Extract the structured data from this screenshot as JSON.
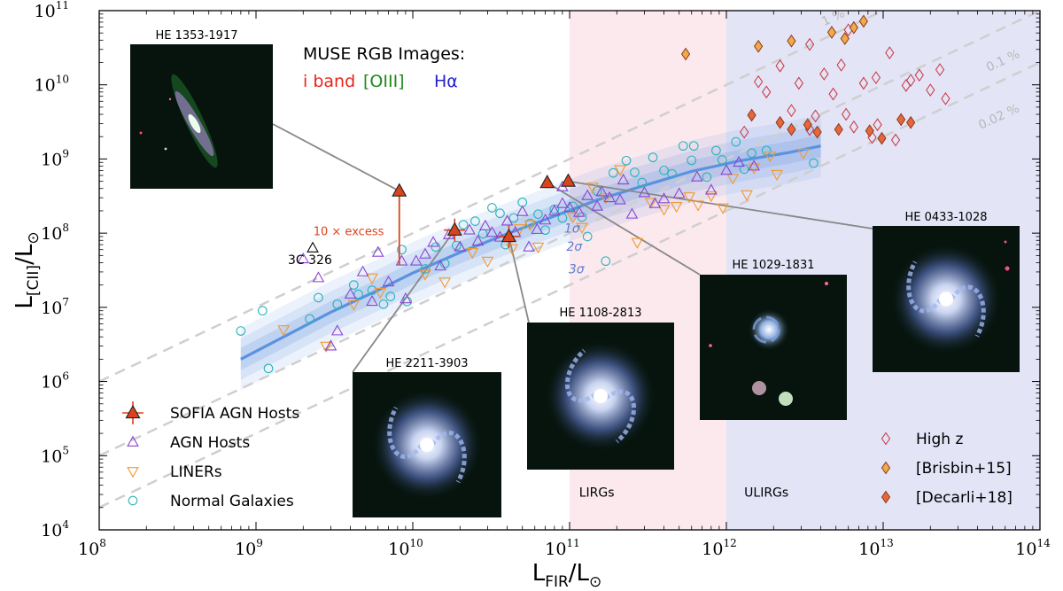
{
  "chart_data": {
    "type": "scatter",
    "xlabel": "L_FIR/L_⊙",
    "ylabel": "L_[CII]/L_⊙",
    "xscale": "log",
    "yscale": "log",
    "xlim": [
      100000000.0,
      100000000000000.0
    ],
    "ylim": [
      10000.0,
      100000000000.0
    ],
    "grid": false,
    "legend_position": "lower-left and lower-right",
    "x_tick_labels": [
      "10^8",
      "10^9",
      "10^10",
      "10^11",
      "10^12",
      "10^13",
      "10^14"
    ],
    "y_tick_labels": [
      "10^4",
      "10^5",
      "10^6",
      "10^7",
      "10^8",
      "10^9",
      "10^10",
      "10^11"
    ],
    "regions": [
      {
        "label": "LIRGs",
        "x_range": [
          100000000000.0,
          1000000000000.0
        ],
        "color": "#fbe9ee"
      },
      {
        "label": "ULIRGs",
        "x_range": [
          1000000000000.0,
          100000000000000.0
        ],
        "color": "#e3e4f6"
      }
    ],
    "ratio_lines": [
      {
        "label": "1 %",
        "ratio": 0.01
      },
      {
        "label": "0.1 %",
        "ratio": 0.001
      },
      {
        "label": "0.02 %",
        "ratio": 0.0002
      }
    ],
    "fit_line": {
      "x": [
        800000000.0,
        1500000000.0,
        3000000000.0,
        6000000000.0,
        10000000000.0,
        20000000000.0,
        40000000000.0,
        80000000000.0,
        150000000000.0,
        300000000000.0,
        600000000000.0,
        1200000000000.0,
        2500000000000.0,
        4000000000000.0
      ],
      "y": [
        2000000.0,
        4000000.0,
        8600000.0,
        17000000.0,
        29000000.0,
        55000000.0,
        98000000.0,
        170000000.0,
        280000000.0,
        440000000.0,
        680000000.0,
        940000000.0,
        1220000000.0,
        1500000000.0
      ]
    },
    "confidence_labels": [
      "1σ",
      "2σ",
      "3σ"
    ],
    "series": [
      {
        "name": "SOFIA AGN Hosts",
        "marker": "triangle-up-filled",
        "color": "#d9441d",
        "points": [
          [
            8200000000.0,
            370000000.0
          ],
          [
            18500000000.0,
            110000000.0
          ],
          [
            41000000000.0,
            90000000.0
          ],
          [
            72000000000.0,
            480000000.0
          ],
          [
            98000000000.0,
            500000000.0
          ]
        ]
      },
      {
        "name": "AGN Hosts",
        "marker": "triangle-up-open",
        "color": "#8b45d1",
        "points": [
          [
            2000000000.0,
            45000000.0
          ],
          [
            2500000000.0,
            25000000.0
          ],
          [
            3000000000.0,
            3000000.0
          ],
          [
            3300000000.0,
            4800000.0
          ],
          [
            4000000000.0,
            15000000.0
          ],
          [
            4800000000.0,
            30000000.0
          ],
          [
            5500000000.0,
            12000000.0
          ],
          [
            6000000000.0,
            55000000.0
          ],
          [
            7000000000.0,
            22000000.0
          ],
          [
            8500000000.0,
            42000000.0
          ],
          [
            9000000000.0,
            13000000.0
          ],
          [
            10500000000.0,
            42000000.0
          ],
          [
            12000000000.0,
            52000000.0
          ],
          [
            13500000000.0,
            75000000.0
          ],
          [
            15000000000.0,
            36000000.0
          ],
          [
            17000000000.0,
            95000000.0
          ],
          [
            20000000000.0,
            65000000.0
          ],
          [
            23000000000.0,
            110000000.0
          ],
          [
            26000000000.0,
            78000000.0
          ],
          [
            29000000000.0,
            125000000.0
          ],
          [
            32000000000.0,
            102000000.0
          ],
          [
            36000000000.0,
            88000000.0
          ],
          [
            40000000000.0,
            145000000.0
          ],
          [
            45000000000.0,
            102000000.0
          ],
          [
            50000000000.0,
            195000000.0
          ],
          [
            55000000000.0,
            65000000.0
          ],
          [
            62000000000.0,
            112000000.0
          ],
          [
            70000000000.0,
            150000000.0
          ],
          [
            80000000000.0,
            198000000.0
          ],
          [
            90000000000.0,
            250000000.0
          ],
          [
            100000000000.0,
            220000000.0
          ],
          [
            115000000000.0,
            190000000.0
          ],
          [
            130000000000.0,
            320000000.0
          ],
          [
            150000000000.0,
            230000000.0
          ],
          [
            180000000000.0,
            300000000.0
          ],
          [
            210000000000.0,
            280000000.0
          ],
          [
            250000000000.0,
            180000000.0
          ],
          [
            300000000000.0,
            350000000.0
          ],
          [
            350000000000.0,
            250000000.0
          ],
          [
            400000000000.0,
            290000000.0
          ],
          [
            500000000000.0,
            340000000.0
          ],
          [
            650000000000.0,
            570000000.0
          ],
          [
            800000000000.0,
            380000000.0
          ],
          [
            1000000000000.0,
            700000000.0
          ],
          [
            1200000000000.0,
            900000000.0
          ],
          [
            1500000000000.0,
            800000000.0
          ],
          [
            90000000000.0,
            420000000.0
          ],
          [
            160000000000.0,
            360000000.0
          ],
          [
            220000000000.0,
            520000000.0
          ]
        ]
      },
      {
        "name": "LINERs",
        "marker": "triangle-down-open",
        "color": "#f29a2e",
        "points": [
          [
            1500000000.0,
            5000000.0
          ],
          [
            2800000000.0,
            3000000.0
          ],
          [
            4200000000.0,
            11000000.0
          ],
          [
            5500000000.0,
            25000000.0
          ],
          [
            6200000000.0,
            16000000.0
          ],
          [
            12000000000.0,
            28000000.0
          ],
          [
            16000000000.0,
            22000000.0
          ],
          [
            24000000000.0,
            55000000.0
          ],
          [
            30000000000.0,
            42000000.0
          ],
          [
            43000000000.0,
            62000000.0
          ],
          [
            48000000000.0,
            115000000.0
          ],
          [
            56000000000.0,
            130000000.0
          ],
          [
            63000000000.0,
            65000000.0
          ],
          [
            105000000000.0,
            165000000.0
          ],
          [
            120000000000.0,
            120000000.0
          ],
          [
            140000000000.0,
            420000000.0
          ],
          [
            170000000000.0,
            300000000.0
          ],
          [
            210000000000.0,
            720000000.0
          ],
          [
            270000000000.0,
            75000000.0
          ],
          [
            330000000000.0,
            260000000.0
          ],
          [
            400000000000.0,
            210000000.0
          ],
          [
            480000000000.0,
            230000000.0
          ],
          [
            580000000000.0,
            310000000.0
          ],
          [
            660000000000.0,
            240000000.0
          ],
          [
            800000000000.0,
            320000000.0
          ],
          [
            950000000000.0,
            220000000.0
          ],
          [
            1100000000000.0,
            550000000.0
          ],
          [
            1350000000000.0,
            330000000.0
          ],
          [
            1500000000000.0,
            760000000.0
          ],
          [
            1900000000000.0,
            1100000000.0
          ],
          [
            2100000000000.0,
            620000000.0
          ],
          [
            3100000000000.0,
            1200000000.0
          ]
        ]
      },
      {
        "name": "Normal Galaxies",
        "marker": "circle-open",
        "color": "#2ab3b8",
        "points": [
          [
            800000000.0,
            4800000.0
          ],
          [
            1100000000.0,
            9000000.0
          ],
          [
            1200000000.0,
            1500000.0
          ],
          [
            2200000000.0,
            7000000.0
          ],
          [
            2500000000.0,
            13500000.0
          ],
          [
            3300000000.0,
            11000000.0
          ],
          [
            4200000000.0,
            20000000.0
          ],
          [
            4500000000.0,
            15000000.0
          ],
          [
            5500000000.0,
            17000000.0
          ],
          [
            6500000000.0,
            11000000.0
          ],
          [
            7200000000.0,
            14000000.0
          ],
          [
            8500000000.0,
            60000000.0
          ],
          [
            9200000000.0,
            12000000.0
          ],
          [
            12000000000.0,
            33000000.0
          ],
          [
            14000000000.0,
            65000000.0
          ],
          [
            16000000000.0,
            39000000.0
          ],
          [
            19000000000.0,
            68000000.0
          ],
          [
            21000000000.0,
            130000000.0
          ],
          [
            25000000000.0,
            145000000.0
          ],
          [
            28000000000.0,
            98000000.0
          ],
          [
            32000000000.0,
            220000000.0
          ],
          [
            36000000000.0,
            185000000.0
          ],
          [
            39000000000.0,
            70000000.0
          ],
          [
            44000000000.0,
            160000000.0
          ],
          [
            50000000000.0,
            260000000.0
          ],
          [
            56000000000.0,
            135000000.0
          ],
          [
            63000000000.0,
            180000000.0
          ],
          [
            70000000000.0,
            110000000.0
          ],
          [
            80000000000.0,
            210000000.0
          ],
          [
            90000000000.0,
            160000000.0
          ],
          [
            105000000000.0,
            230000000.0
          ],
          [
            120000000000.0,
            165000000.0
          ],
          [
            130000000000.0,
            90000000.0
          ],
          [
            150000000000.0,
            370000000.0
          ],
          [
            170000000000.0,
            42000000.0
          ],
          [
            190000000000.0,
            650000000.0
          ],
          [
            230000000000.0,
            950000000.0
          ],
          [
            260000000000.0,
            660000000.0
          ],
          [
            290000000000.0,
            480000000.0
          ],
          [
            340000000000.0,
            1050000000.0
          ],
          [
            400000000000.0,
            700000000.0
          ],
          [
            450000000000.0,
            630000000.0
          ],
          [
            530000000000.0,
            1500000000.0
          ],
          [
            620000000000.0,
            1500000000.0
          ],
          [
            750000000000.0,
            570000000.0
          ],
          [
            860000000000.0,
            1300000000.0
          ],
          [
            940000000000.0,
            970000000.0
          ],
          [
            1150000000000.0,
            1700000000.0
          ],
          [
            1450000000000.0,
            1200000000.0
          ],
          [
            1800000000000.0,
            1300000000.0
          ],
          [
            3600000000000.0,
            880000000.0
          ],
          [
            600000000000.0,
            960000000.0
          ],
          [
            1300000000000.0,
            730000000.0
          ]
        ]
      },
      {
        "name": "High z",
        "marker": "diamond-open",
        "color": "#c8323c",
        "points": [
          [
            1300000000000.0,
            2300000000.0
          ],
          [
            1600000000000.0,
            11000000000.0
          ],
          [
            1800000000000.0,
            8000000000.0
          ],
          [
            2200000000000.0,
            18000000000.0
          ],
          [
            2600000000000.0,
            4500000000.0
          ],
          [
            2900000000000.0,
            10500000000.0
          ],
          [
            3400000000000.0,
            2500000000.0
          ],
          [
            3700000000000.0,
            3800000000.0
          ],
          [
            4200000000000.0,
            14000000000.0
          ],
          [
            4800000000000.0,
            7500000000.0
          ],
          [
            5400000000000.0,
            18500000000.0
          ],
          [
            5800000000000.0,
            4000000000.0
          ],
          [
            6500000000000.0,
            2700000000.0
          ],
          [
            7500000000000.0,
            10500000000.0
          ],
          [
            8500000000000.0,
            1950000000.0
          ],
          [
            9000000000000.0,
            12500000000.0
          ],
          [
            11000000000000.0,
            27000000000.0
          ],
          [
            12000000000000.0,
            1800000000.0
          ],
          [
            15000000000000.0,
            11500000000.0
          ],
          [
            17000000000000.0,
            13500000000.0
          ],
          [
            20000000000000.0,
            8500000000.0
          ],
          [
            23000000000000.0,
            16000000000.0
          ],
          [
            25000000000000.0,
            6500000000.0
          ],
          [
            3400000000000.0,
            35000000000.0
          ],
          [
            6000000000000.0,
            55000000000.0
          ],
          [
            9200000000000.0,
            2900000000.0
          ],
          [
            14000000000000.0,
            9800000000.0
          ]
        ]
      },
      {
        "name": "[Brisbin+15]",
        "marker": "diamond-filled",
        "color": "#f2a94a",
        "points": [
          [
            550000000000.0,
            26000000000.0
          ],
          [
            1600000000000.0,
            33000000000.0
          ],
          [
            2600000000000.0,
            39000000000.0
          ],
          [
            4700000000000.0,
            51000000000.0
          ],
          [
            5700000000000.0,
            42000000000.0
          ],
          [
            6500000000000.0,
            59000000000.0
          ],
          [
            7500000000000.0,
            72000000000.0
          ]
        ]
      },
      {
        "name": "[Decarli+18]",
        "marker": "diamond-filled",
        "color": "#e9663d",
        "points": [
          [
            1450000000000.0,
            3900000000.0
          ],
          [
            2200000000000.0,
            3100000000.0
          ],
          [
            2600000000000.0,
            2500000000.0
          ],
          [
            3300000000000.0,
            2900000000.0
          ],
          [
            3800000000000.0,
            2300000000.0
          ],
          [
            5200000000000.0,
            2500000000.0
          ],
          [
            8200000000000.0,
            2400000000.0
          ],
          [
            9800000000000.0,
            1900000000.0
          ],
          [
            13000000000000.0,
            3400000000.0
          ],
          [
            15000000000000.0,
            3100000000.0
          ]
        ]
      },
      {
        "name": "3C 326",
        "marker": "triangle-up-open",
        "color": "#000000",
        "points": [
          [
            2300000000.0,
            63000000.0
          ]
        ]
      }
    ],
    "annotations": [
      {
        "text": "10 × excess",
        "color": "#d9441d"
      },
      {
        "text": "3C 326",
        "color": "#000000"
      },
      {
        "text": "LIRGs"
      },
      {
        "text": "ULIRGs"
      }
    ],
    "inset_title": "MUSE RGB Images:",
    "inset_channels": [
      {
        "text": "i band",
        "color": "#e8251b"
      },
      {
        "text": "[OIII]",
        "color": "#1f8a1f"
      },
      {
        "text": "Hα",
        "color": "#2222cc"
      }
    ],
    "insets": [
      {
        "label": "HE 1353-1917",
        "target": [
          8200000000.0,
          370000000.0
        ]
      },
      {
        "label": "HE 2211-3903",
        "target": [
          18500000000.0,
          110000000.0
        ]
      },
      {
        "label": "HE 1108-2813",
        "target": [
          41000000000.0,
          90000000.0
        ]
      },
      {
        "label": "HE 1029-1831",
        "target": [
          72000000000.0,
          480000000.0
        ]
      },
      {
        "label": "HE 0433-1028",
        "target": [
          98000000000.0,
          500000000.0
        ]
      }
    ]
  }
}
